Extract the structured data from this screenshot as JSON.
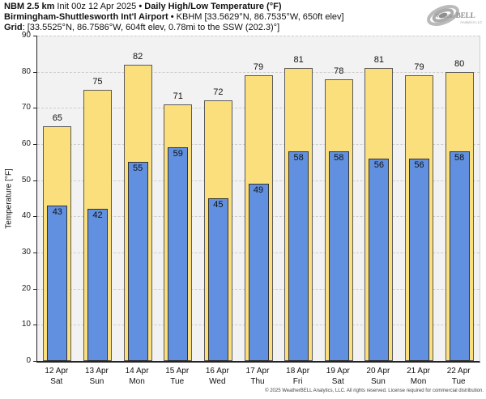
{
  "header": {
    "bullet": "•",
    "line1": {
      "model": "NBM 2.5 km",
      "init": "Init 00z 12 Apr 2025",
      "product": "Daily High/Low Temperature (°F)"
    },
    "line2": {
      "station_name": "Birmingham-Shuttlesworth Int'l Airport",
      "station_meta": "KBHM [33.5629°N, 86.7535°W, 650ft elev]"
    },
    "line3": {
      "label": "Grid",
      "value": ": [33.5525°N, 86.7586°W, 604ft elev, 0.78mi to the SSW (202.3)°]"
    }
  },
  "logo": {
    "part1": "Weather",
    "part2": "BELL",
    "tagline": "Analytics LLC"
  },
  "chart_data": {
    "type": "bar",
    "title": "NBM 2.5 km Daily High/Low Temperature (°F) — KBHM",
    "categories": [
      {
        "date": "12 Apr",
        "day": "Sat"
      },
      {
        "date": "13 Apr",
        "day": "Sun"
      },
      {
        "date": "14 Apr",
        "day": "Mon"
      },
      {
        "date": "15 Apr",
        "day": "Tue"
      },
      {
        "date": "16 Apr",
        "day": "Wed"
      },
      {
        "date": "17 Apr",
        "day": "Thu"
      },
      {
        "date": "18 Apr",
        "day": "Fri"
      },
      {
        "date": "19 Apr",
        "day": "Sat"
      },
      {
        "date": "20 Apr",
        "day": "Sun"
      },
      {
        "date": "21 Apr",
        "day": "Mon"
      },
      {
        "date": "22 Apr",
        "day": "Tue"
      }
    ],
    "series": [
      {
        "name": "High",
        "values": [
          65,
          75,
          82,
          71,
          72,
          79,
          81,
          78,
          81,
          79,
          80
        ],
        "color": "#FBDF7D"
      },
      {
        "name": "Low",
        "values": [
          43,
          42,
          55,
          59,
          45,
          49,
          58,
          58,
          56,
          56,
          58
        ],
        "color": "#6190E0"
      }
    ],
    "ylabel": "Temperature [°F]",
    "ylim": [
      0,
      90
    ],
    "ytick_step": 10,
    "grid": true,
    "plot_bg": "#F2F2F2",
    "legend": "none"
  },
  "footer": "© 2025 WeatherBELL Analytics, LLC. All rights reserved. License required for commercial distribution."
}
